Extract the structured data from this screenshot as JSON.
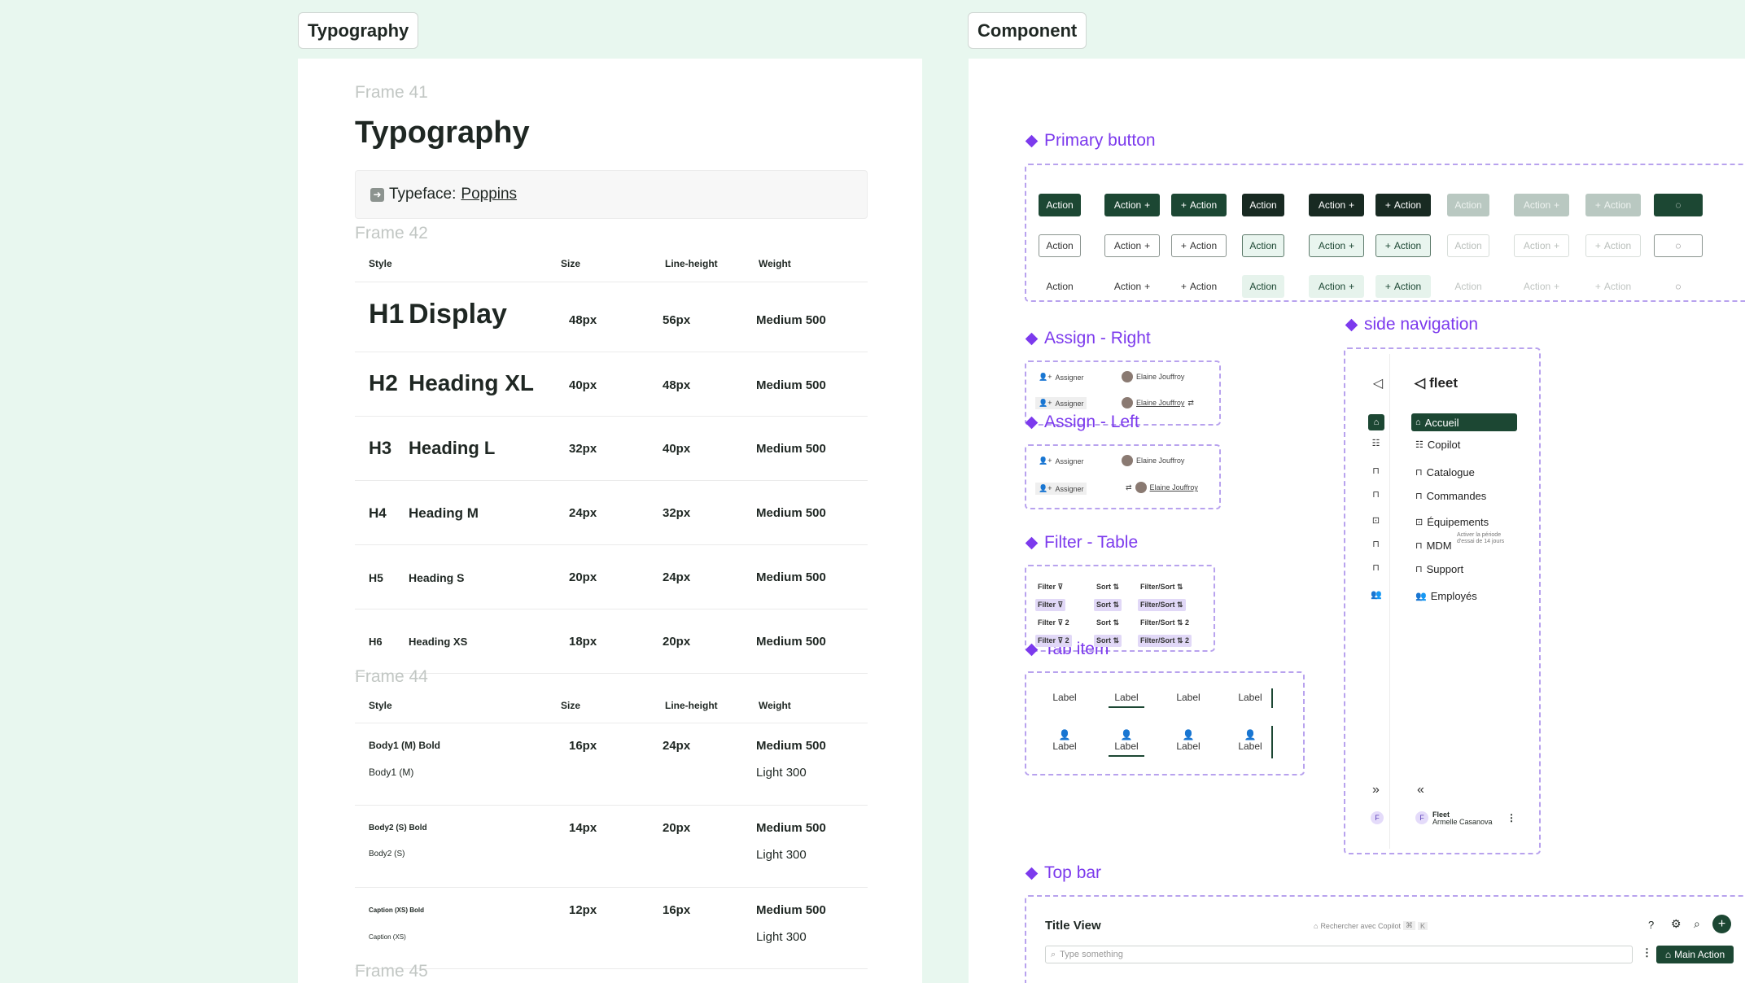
{
  "badges": {
    "typography": "Typography",
    "component": "Component"
  },
  "typo": {
    "frame41": "Frame 41",
    "title": "Typography",
    "typeface_label": "Typeface:",
    "typeface_name": "Poppins",
    "frame42": "Frame 42",
    "frame44": "Frame 44",
    "frame45": "Frame 45",
    "headers": {
      "style": "Style",
      "size": "Size",
      "line_height": "Line-height",
      "weight": "Weight"
    },
    "headings": [
      {
        "tag": "H1",
        "label": "Display",
        "size": "48px",
        "lh": "56px",
        "weight": "Medium 500"
      },
      {
        "tag": "H2",
        "label": "Heading XL",
        "size": "40px",
        "lh": "48px",
        "weight": "Medium 500"
      },
      {
        "tag": "H3",
        "label": "Heading L",
        "size": "32px",
        "lh": "40px",
        "weight": "Medium 500"
      },
      {
        "tag": "H4",
        "label": "Heading M",
        "size": "24px",
        "lh": "32px",
        "weight": "Medium 500"
      },
      {
        "tag": "H5",
        "label": "Heading S",
        "size": "20px",
        "lh": "24px",
        "weight": "Medium 500"
      },
      {
        "tag": "H6",
        "label": "Heading XS",
        "size": "18px",
        "lh": "20px",
        "weight": "Medium 500"
      }
    ],
    "body": [
      {
        "bold": "Body1 (M) Bold",
        "regular": "Body1 (M)",
        "size": "16px",
        "lh": "24px",
        "weight": "Medium 500",
        "weight2": "Light 300"
      },
      {
        "bold": "Body2 (S) Bold",
        "regular": "Body2 (S)",
        "size": "14px",
        "lh": "20px",
        "weight": "Medium 500",
        "weight2": "Light 300"
      },
      {
        "bold": "Caption (XS) Bold",
        "regular": "Caption (XS)",
        "size": "12px",
        "lh": "16px",
        "weight": "Medium 500",
        "weight2": "Light 300"
      }
    ]
  },
  "comp": {
    "primary_title": "Primary button",
    "action": "Action",
    "assign_right_title": "Assign - Right",
    "assign_left_title": "Assign - Left",
    "assigner": "Assigner",
    "person": "Elaine Jouffroy",
    "filter_title": "Filter - Table",
    "filter": {
      "filter": "Filter",
      "sort": "Sort",
      "filter_sort": "Filter/Sort",
      "count": "2"
    },
    "tab_title": "Tab item",
    "tab_label": "Label",
    "sidenav_title": "side navigation",
    "sidenav": {
      "brand": "fleet",
      "items": [
        "Accueil",
        "Copilot",
        "Catalogue",
        "Commandes",
        "Équipements",
        "MDM",
        "Support",
        "Employés"
      ],
      "mdm_note_1": "Activer la période",
      "mdm_note_2": "d'essai de 14 jours",
      "user_initial": "F",
      "user_company": "Fleet",
      "user_name": "Armelle Casanova"
    },
    "topbar_title": "Top bar",
    "topbar": {
      "view_title": "Title View",
      "copilot": "Rechercher avec Copilot",
      "search_placeholder": "Type something",
      "main_action": "Main Action"
    }
  }
}
